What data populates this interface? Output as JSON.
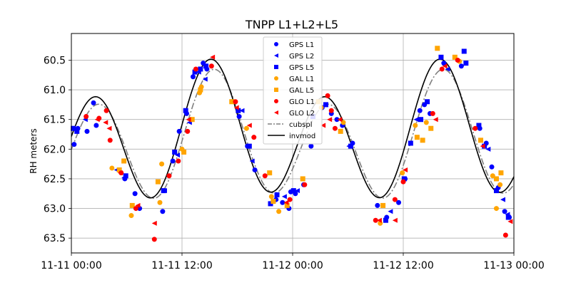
{
  "chart_data": {
    "type": "scatter",
    "title": "TNPP L1+L2+L5",
    "xlabel": "",
    "ylabel": "RH meters",
    "x_ticks": [
      "11-11 00:00",
      "11-11 12:00",
      "11-12 00:00",
      "11-12 12:00",
      "11-13 00:00"
    ],
    "x_range_hours": [
      0,
      48
    ],
    "y_ticks": [
      "60.5",
      "61.0",
      "61.5",
      "62.0",
      "62.5",
      "63.0",
      "63.5"
    ],
    "ylim": [
      63.75,
      60.05
    ],
    "y_inverted": true,
    "grid": true,
    "legend_position": "upper center",
    "series": [
      {
        "name": "GPS L1",
        "marker": "circle",
        "color": "#0000ff",
        "points": [
          [
            0.3,
            61.92
          ],
          [
            0.7,
            61.65
          ],
          [
            1.7,
            61.7
          ],
          [
            2.4,
            61.22
          ],
          [
            2.7,
            61.6
          ],
          [
            5.8,
            62.5
          ],
          [
            6.9,
            62.75
          ],
          [
            7.4,
            63.0
          ],
          [
            9.9,
            63.05
          ],
          [
            11.0,
            62.2
          ],
          [
            11.7,
            61.7
          ],
          [
            12.5,
            61.4
          ],
          [
            13.2,
            60.78
          ],
          [
            14.3,
            60.55
          ],
          [
            14.7,
            60.65
          ],
          [
            18.2,
            61.45
          ],
          [
            19.1,
            61.95
          ],
          [
            19.9,
            62.35
          ],
          [
            22.2,
            62.85
          ],
          [
            22.9,
            62.9
          ],
          [
            23.6,
            63.0
          ],
          [
            23.8,
            62.72
          ],
          [
            24.3,
            62.75
          ],
          [
            25.2,
            62.6
          ],
          [
            26.0,
            61.95
          ],
          [
            27.2,
            61.3
          ],
          [
            28.2,
            61.4
          ],
          [
            28.8,
            61.5
          ],
          [
            29.4,
            61.6
          ],
          [
            30.5,
            61.9
          ],
          [
            33.2,
            62.95
          ],
          [
            34.2,
            63.15
          ],
          [
            35.5,
            62.9
          ],
          [
            36.2,
            62.5
          ],
          [
            37.8,
            61.35
          ],
          [
            38.3,
            61.25
          ],
          [
            38.9,
            61.4
          ],
          [
            40.4,
            60.55
          ],
          [
            42.3,
            60.6
          ],
          [
            44.3,
            61.65
          ],
          [
            45.0,
            61.9
          ],
          [
            45.6,
            62.3
          ],
          [
            46.3,
            62.65
          ],
          [
            47.0,
            63.05
          ],
          [
            47.5,
            63.15
          ]
        ]
      },
      {
        "name": "GPS L2",
        "marker": "triangle-left",
        "color": "#0000ff",
        "points": [
          [
            0.5,
            61.65
          ],
          [
            1.5,
            61.5
          ],
          [
            4.9,
            62.35
          ],
          [
            5.7,
            62.48
          ],
          [
            10.1,
            62.7
          ],
          [
            11.5,
            62.1
          ],
          [
            12.8,
            61.55
          ],
          [
            13.8,
            60.7
          ],
          [
            14.5,
            60.82
          ],
          [
            18.5,
            61.35
          ],
          [
            19.6,
            62.2
          ],
          [
            23.1,
            62.8
          ],
          [
            24.5,
            62.7
          ],
          [
            30.1,
            61.95
          ],
          [
            34.6,
            63.05
          ],
          [
            37.4,
            61.5
          ],
          [
            40.8,
            60.65
          ],
          [
            45.2,
            62.0
          ],
          [
            46.8,
            62.85
          ],
          [
            47.3,
            63.1
          ]
        ]
      },
      {
        "name": "GPS L5",
        "marker": "square",
        "color": "#0000ff",
        "points": [
          [
            0.2,
            61.65
          ],
          [
            0.6,
            61.7
          ],
          [
            5.9,
            62.45
          ],
          [
            10.0,
            62.7
          ],
          [
            11.2,
            62.05
          ],
          [
            12.4,
            61.35
          ],
          [
            13.4,
            60.7
          ],
          [
            14.0,
            60.65
          ],
          [
            14.6,
            60.6
          ],
          [
            18.1,
            61.35
          ],
          [
            19.3,
            61.95
          ],
          [
            21.6,
            62.92
          ],
          [
            22.3,
            62.77
          ],
          [
            24.1,
            62.7
          ],
          [
            26.2,
            61.45
          ],
          [
            27.6,
            61.25
          ],
          [
            30.3,
            61.95
          ],
          [
            34.1,
            63.2
          ],
          [
            36.1,
            62.5
          ],
          [
            36.8,
            61.9
          ],
          [
            37.9,
            61.5
          ],
          [
            38.6,
            61.2
          ],
          [
            40.1,
            60.45
          ],
          [
            42.6,
            60.35
          ],
          [
            42.8,
            60.55
          ],
          [
            44.2,
            61.6
          ],
          [
            44.8,
            61.95
          ],
          [
            46.1,
            62.7
          ],
          [
            47.4,
            63.15
          ]
        ]
      },
      {
        "name": "GAL L1",
        "marker": "circle",
        "color": "#ffa500",
        "points": [
          [
            4.4,
            62.32
          ],
          [
            6.5,
            63.12
          ],
          [
            9.6,
            62.9
          ],
          [
            9.8,
            62.25
          ],
          [
            12.0,
            62.0
          ],
          [
            13.9,
            61.05
          ],
          [
            14.1,
            60.95
          ],
          [
            17.6,
            61.2
          ],
          [
            19.0,
            61.65
          ],
          [
            21.7,
            62.8
          ],
          [
            22.5,
            63.05
          ],
          [
            27.1,
            61.3
          ],
          [
            29.5,
            61.55
          ],
          [
            33.5,
            63.25
          ],
          [
            35.9,
            62.4
          ],
          [
            37.3,
            61.6
          ],
          [
            38.5,
            61.55
          ],
          [
            42.1,
            60.52
          ],
          [
            45.7,
            62.45
          ],
          [
            46.1,
            63.0
          ],
          [
            46.5,
            62.6
          ]
        ]
      },
      {
        "name": "GAL L5",
        "marker": "square",
        "color": "#ffa500",
        "points": [
          [
            5.2,
            62.35
          ],
          [
            5.7,
            62.2
          ],
          [
            6.6,
            62.95
          ],
          [
            9.4,
            62.55
          ],
          [
            12.2,
            62.05
          ],
          [
            13.1,
            61.5
          ],
          [
            14.0,
            61.0
          ],
          [
            17.4,
            61.2
          ],
          [
            21.5,
            62.4
          ],
          [
            21.9,
            62.88
          ],
          [
            23.4,
            62.95
          ],
          [
            25.1,
            62.5
          ],
          [
            26.8,
            61.2
          ],
          [
            29.2,
            61.7
          ],
          [
            33.8,
            62.95
          ],
          [
            37.5,
            61.8
          ],
          [
            38.1,
            61.85
          ],
          [
            39.0,
            61.65
          ],
          [
            39.7,
            60.3
          ],
          [
            41.6,
            60.45
          ],
          [
            44.4,
            61.85
          ],
          [
            46.1,
            62.5
          ],
          [
            46.6,
            62.4
          ]
        ]
      },
      {
        "name": "GLO L1",
        "marker": "circle",
        "color": "#ff0000",
        "points": [
          [
            1.6,
            61.45
          ],
          [
            3.0,
            61.48
          ],
          [
            3.8,
            61.35
          ],
          [
            4.2,
            61.85
          ],
          [
            5.4,
            62.4
          ],
          [
            7.0,
            63.0
          ],
          [
            9.0,
            63.52
          ],
          [
            10.6,
            62.45
          ],
          [
            11.6,
            62.2
          ],
          [
            12.6,
            61.7
          ],
          [
            13.5,
            60.65
          ],
          [
            15.2,
            60.6
          ],
          [
            17.8,
            61.2
          ],
          [
            19.8,
            61.8
          ],
          [
            21.0,
            62.45
          ],
          [
            23.7,
            62.85
          ],
          [
            25.3,
            62.6
          ],
          [
            27.8,
            61.1
          ],
          [
            28.2,
            61.35
          ],
          [
            28.6,
            61.65
          ],
          [
            33.0,
            63.2
          ],
          [
            35.1,
            62.85
          ],
          [
            36.0,
            62.55
          ],
          [
            39.2,
            61.4
          ],
          [
            40.2,
            60.65
          ],
          [
            41.9,
            60.5
          ],
          [
            43.8,
            61.65
          ],
          [
            47.1,
            63.45
          ]
        ]
      },
      {
        "name": "GLO L2",
        "marker": "triangle-left",
        "color": "#ff0000",
        "points": [
          [
            2.8,
            61.5
          ],
          [
            3.7,
            61.55
          ],
          [
            4.1,
            61.65
          ],
          [
            5.3,
            62.4
          ],
          [
            7.2,
            62.95
          ],
          [
            9.0,
            63.25
          ],
          [
            12.7,
            61.5
          ],
          [
            15.3,
            60.45
          ],
          [
            17.9,
            61.3
          ],
          [
            19.3,
            61.6
          ],
          [
            23.3,
            62.9
          ],
          [
            27.3,
            61.6
          ],
          [
            28.0,
            61.5
          ],
          [
            29.1,
            61.5
          ],
          [
            33.4,
            63.2
          ],
          [
            35.1,
            63.2
          ],
          [
            36.2,
            62.35
          ],
          [
            39.5,
            61.5
          ],
          [
            40.5,
            60.6
          ],
          [
            44.6,
            61.95
          ],
          [
            47.6,
            63.22
          ]
        ]
      }
    ],
    "lines": [
      {
        "name": "cubspl",
        "style": "dash-dot",
        "color": "#808080"
      },
      {
        "name": "invmod",
        "style": "solid",
        "color": "#000000"
      }
    ]
  }
}
